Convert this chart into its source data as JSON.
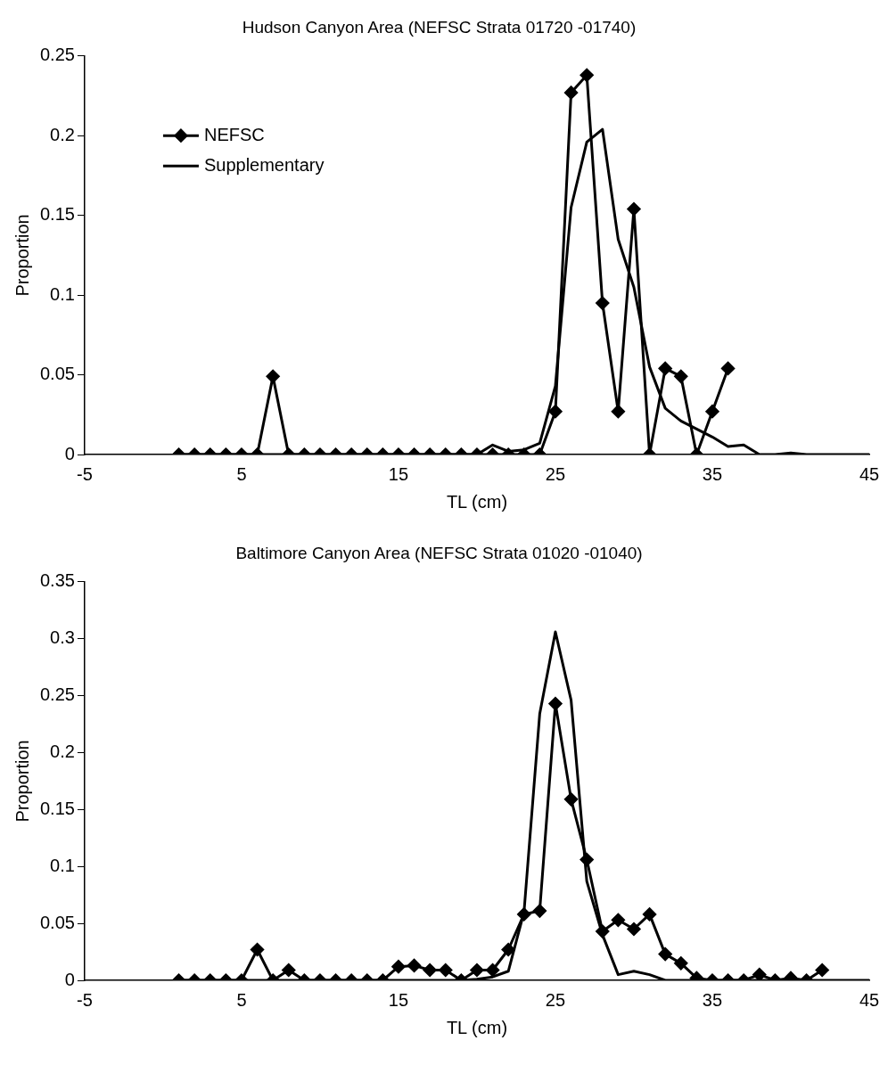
{
  "chart_data": [
    {
      "type": "line",
      "title": "Hudson Canyon Area (NEFSC Strata 01720 -01740)",
      "xlabel": "TL (cm)",
      "ylabel": "Proportion",
      "xlim": [
        -5,
        45
      ],
      "xticks": [
        -5,
        5,
        15,
        25,
        35,
        45
      ],
      "ylim": [
        0,
        0.25
      ],
      "yticks": [
        0,
        0.05,
        0.1,
        0.15,
        0.2,
        0.25
      ],
      "grid": false,
      "legend": "top left",
      "series": [
        {
          "name": "NEFSC",
          "color": "#000000",
          "marker": "diamond",
          "x": [
            1,
            2,
            3,
            4,
            5,
            6,
            7,
            8,
            9,
            10,
            11,
            12,
            13,
            14,
            15,
            16,
            17,
            18,
            19,
            20,
            21,
            22,
            23,
            24,
            25,
            26,
            27,
            28,
            29,
            30,
            31,
            32,
            33,
            34,
            35,
            36
          ],
          "values": [
            0,
            0,
            0,
            0,
            0,
            0,
            0.049,
            0,
            0,
            0,
            0,
            0,
            0,
            0,
            0,
            0,
            0,
            0,
            0,
            0,
            0,
            0,
            0,
            0,
            0.027,
            0.227,
            0.238,
            0.095,
            0.027,
            0.154,
            0,
            0.054,
            0.049,
            0,
            0.027,
            0.054
          ]
        },
        {
          "name": "Supplementary",
          "color": "#000000",
          "marker": "none",
          "x": [
            1,
            2,
            3,
            4,
            5,
            6,
            7,
            8,
            9,
            10,
            11,
            12,
            13,
            14,
            15,
            16,
            17,
            18,
            19,
            20,
            21,
            22,
            23,
            24,
            25,
            26,
            27,
            28,
            29,
            30,
            31,
            32,
            33,
            34,
            35,
            36,
            37,
            38,
            39,
            40,
            41,
            42,
            43,
            44,
            45
          ],
          "values": [
            0,
            0,
            0,
            0,
            0,
            0,
            0,
            0,
            0,
            0,
            0,
            0,
            0,
            0,
            0,
            0,
            0,
            0,
            0,
            0,
            0.006,
            0.002,
            0.003,
            0.007,
            0.043,
            0.155,
            0.196,
            0.204,
            0.135,
            0.105,
            0.055,
            0.029,
            0.021,
            0.016,
            0.011,
            0.005,
            0.006,
            0,
            0,
            0.001,
            0,
            0,
            0,
            0,
            0
          ]
        }
      ]
    },
    {
      "type": "line",
      "title": "Baltimore Canyon Area (NEFSC Strata 01020 -01040)",
      "xlabel": "TL (cm)",
      "ylabel": "Proportion",
      "xlim": [
        -5,
        45
      ],
      "xticks": [
        -5,
        5,
        15,
        25,
        35,
        45
      ],
      "ylim": [
        0,
        0.35
      ],
      "yticks": [
        0,
        0.05,
        0.1,
        0.15,
        0.2,
        0.25,
        0.3,
        0.35
      ],
      "grid": false,
      "series": [
        {
          "color": "#000000",
          "marker": "diamond",
          "x": [
            1,
            2,
            3,
            4,
            5,
            6,
            7,
            8,
            9,
            10,
            11,
            12,
            13,
            14,
            15,
            16,
            17,
            18,
            19,
            20,
            21,
            22,
            23,
            24,
            25,
            26,
            27,
            28,
            29,
            30,
            31,
            32,
            33,
            34,
            35,
            36,
            37,
            38,
            39,
            40,
            41,
            42
          ],
          "values": [
            0,
            0,
            0,
            0,
            0,
            0.027,
            0,
            0.009,
            0,
            0,
            0,
            0,
            0,
            0,
            0.012,
            0.013,
            0.009,
            0.009,
            0,
            0.009,
            0.009,
            0.027,
            0.058,
            0.061,
            0.243,
            0.159,
            0.106,
            0.043,
            0.053,
            0.045,
            0.058,
            0.023,
            0.015,
            0.002,
            0,
            0,
            0,
            0.005,
            0,
            0.002,
            0,
            0.009
          ]
        },
        {
          "color": "#000000",
          "marker": "none",
          "x": [
            1,
            2,
            3,
            4,
            5,
            6,
            7,
            8,
            9,
            10,
            11,
            12,
            13,
            14,
            15,
            16,
            17,
            18,
            19,
            20,
            21,
            22,
            23,
            24,
            25,
            26,
            27,
            28,
            29,
            30,
            31,
            32,
            33,
            34,
            35,
            36,
            37,
            38,
            39,
            40,
            41,
            42,
            43,
            44,
            45
          ],
          "values": [
            0,
            0,
            0,
            0,
            0,
            0,
            0,
            0,
            0,
            0,
            0,
            0,
            0,
            0,
            0,
            0,
            0,
            0,
            0,
            0.001,
            0.003,
            0.008,
            0.06,
            0.234,
            0.306,
            0.246,
            0.087,
            0.04,
            0.005,
            0.008,
            0.005,
            0,
            0,
            0,
            0,
            0,
            0,
            0,
            0,
            0,
            0,
            0,
            0,
            0,
            0
          ]
        }
      ]
    }
  ]
}
